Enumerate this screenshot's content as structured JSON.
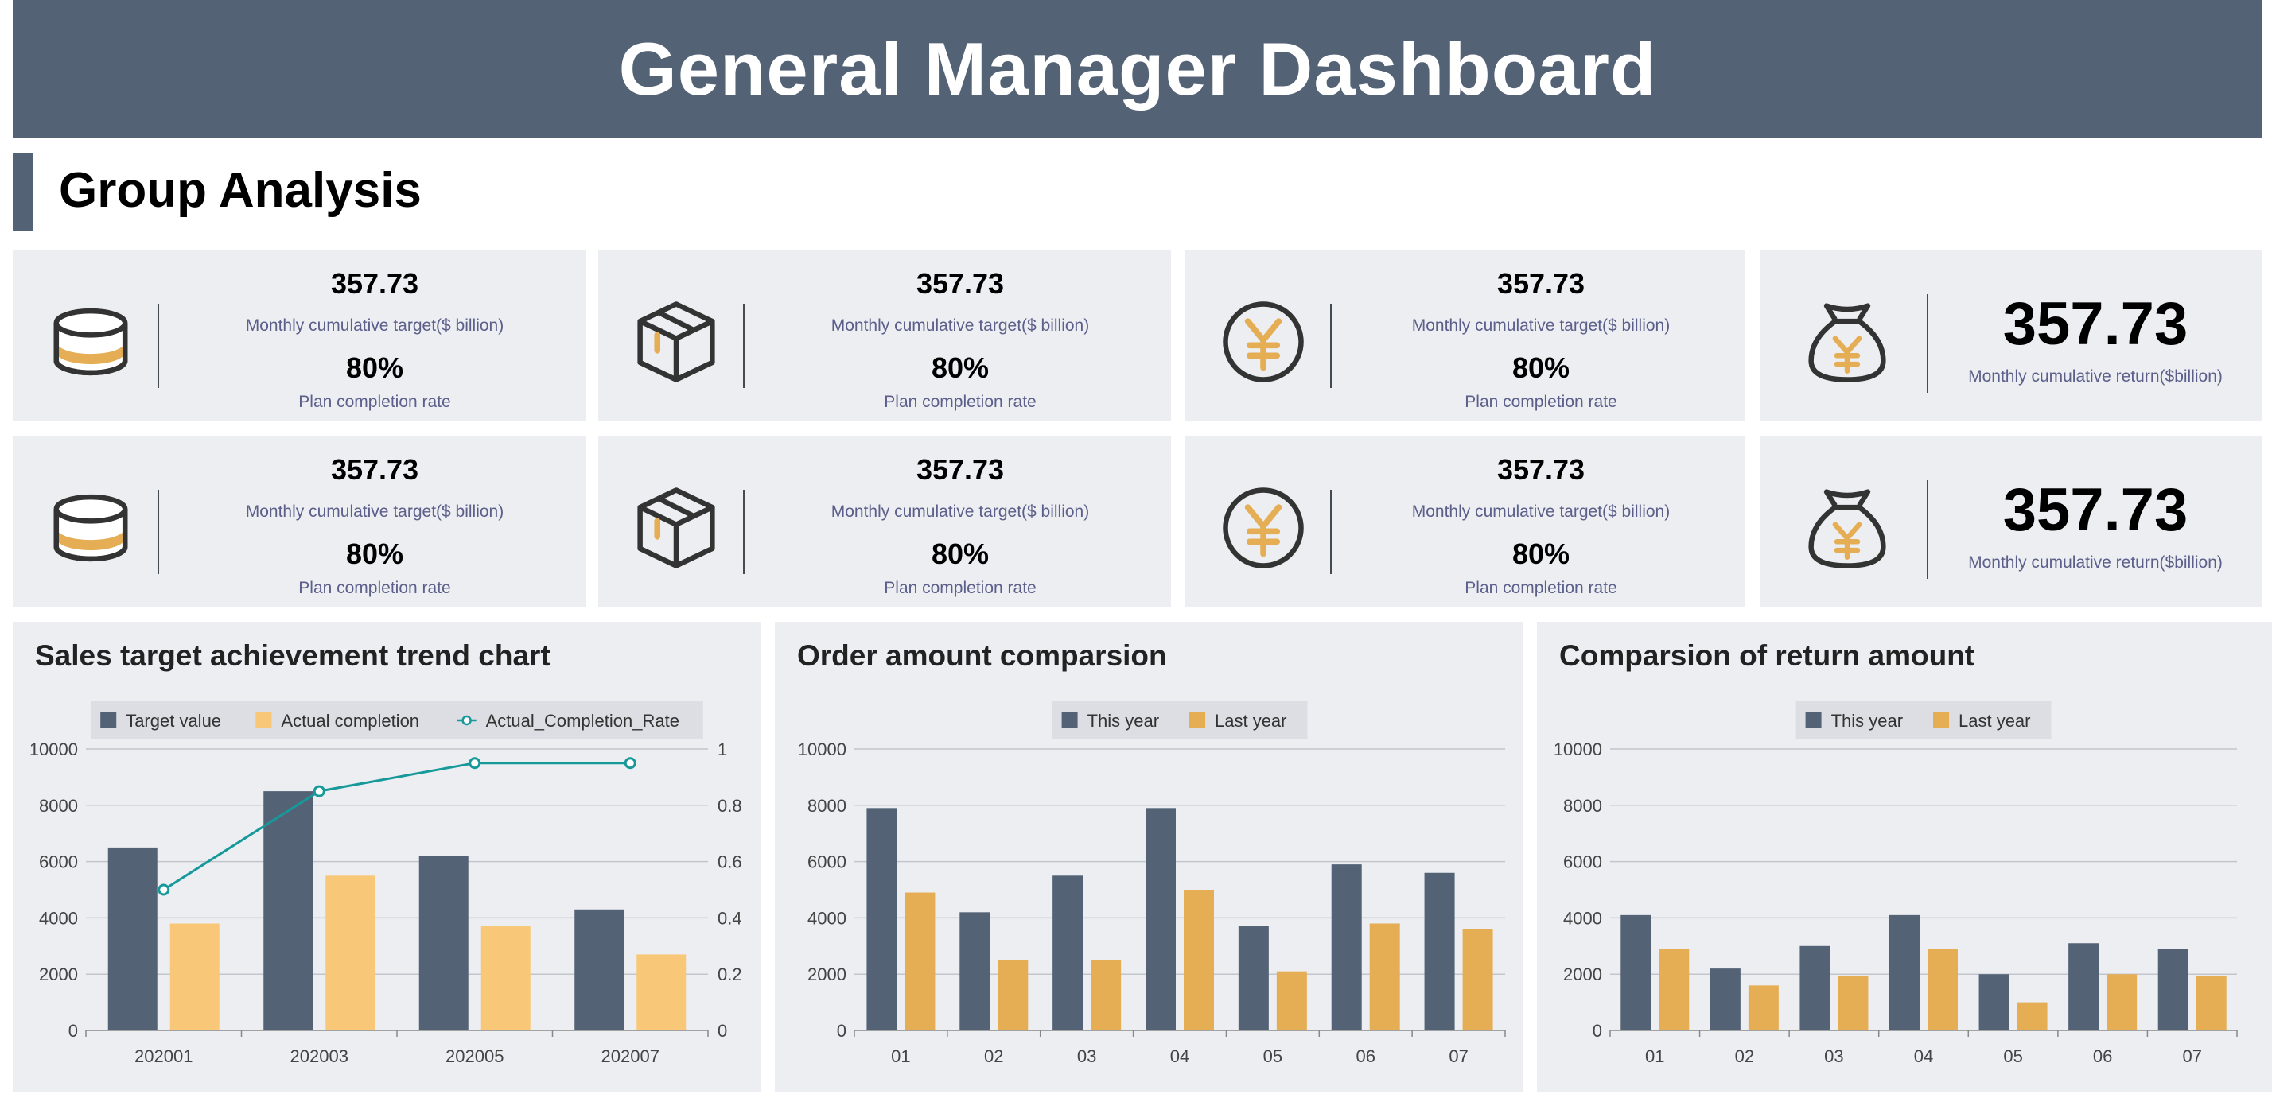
{
  "header": {
    "title": "General Manager Dashboard"
  },
  "section": {
    "title": "Group Analysis"
  },
  "colors": {
    "dark": "#536275",
    "light_gold": "#f8c878",
    "gold": "#e5ae55",
    "teal": "#17999a",
    "card_bg": "#eceef2"
  },
  "kpi_cards": [
    {
      "icon": "database-icon",
      "value": "357.73",
      "label": "Monthly cumulative target($ billion)",
      "rate": "80%",
      "rate_label": "Plan completion rate"
    },
    {
      "icon": "box-icon",
      "value": "357.73",
      "label": "Monthly cumulative target($ billion)",
      "rate": "80%",
      "rate_label": "Plan completion rate"
    },
    {
      "icon": "yen-coin-icon",
      "value": "357.73",
      "label": "Monthly cumulative target($ billion)",
      "rate": "80%",
      "rate_label": "Plan completion rate"
    },
    {
      "icon": "money-bag-icon",
      "value": "357.73",
      "label": "Monthly cumulative return($billion)"
    },
    {
      "icon": "database-icon",
      "value": "357.73",
      "label": "Monthly cumulative target($ billion)",
      "rate": "80%",
      "rate_label": "Plan completion rate"
    },
    {
      "icon": "box-icon",
      "value": "357.73",
      "label": "Monthly cumulative target($ billion)",
      "rate": "80%",
      "rate_label": "Plan completion rate"
    },
    {
      "icon": "yen-coin-icon",
      "value": "357.73",
      "label": "Monthly cumulative target($ billion)",
      "rate": "80%",
      "rate_label": "Plan completion rate"
    },
    {
      "icon": "money-bag-icon",
      "value": "357.73",
      "label": "Monthly cumulative return($billion)"
    }
  ],
  "chart_data": [
    {
      "type": "bar",
      "title": "Sales target achievement trend chart",
      "categories": [
        "202001",
        "202003",
        "202005",
        "202007"
      ],
      "series": [
        {
          "name": "Target value",
          "values": [
            6500,
            8500,
            6200,
            4300
          ],
          "color": "#536275"
        },
        {
          "name": "Actual completion",
          "values": [
            3800,
            5500,
            3700,
            2700
          ],
          "color": "#f8c878"
        }
      ],
      "line_series": {
        "name": "Actual_Completion_Rate",
        "values": [
          0.5,
          0.85,
          0.95,
          0.95
        ],
        "color": "#17999a",
        "axis": "right"
      },
      "ylim": [
        0,
        10000
      ],
      "yticks": [
        0,
        2000,
        4000,
        6000,
        8000,
        10000
      ],
      "y2lim": [
        0,
        1
      ],
      "y2ticks": [
        "0",
        "0.2",
        "0.4",
        "0.6",
        "0.8",
        "1"
      ],
      "legend": "top-center"
    },
    {
      "type": "bar",
      "title": "Order amount comparsion",
      "categories": [
        "01",
        "02",
        "03",
        "04",
        "05",
        "06",
        "07"
      ],
      "series": [
        {
          "name": "This year",
          "values": [
            7900,
            4200,
            5500,
            7900,
            3700,
            5900,
            5600
          ],
          "color": "#536275"
        },
        {
          "name": "Last year",
          "values": [
            4900,
            2500,
            2500,
            5000,
            2100,
            3800,
            3600
          ],
          "color": "#e5ae55"
        }
      ],
      "ylim": [
        0,
        10000
      ],
      "yticks": [
        0,
        2000,
        4000,
        6000,
        8000,
        10000
      ],
      "legend": "top-center"
    },
    {
      "type": "bar",
      "title": "Comparsion of return amount",
      "categories": [
        "01",
        "02",
        "03",
        "04",
        "05",
        "06",
        "07"
      ],
      "series": [
        {
          "name": "This year",
          "values": [
            4100,
            2200,
            3000,
            4100,
            2000,
            3100,
            2900
          ],
          "color": "#536275"
        },
        {
          "name": "Last year",
          "values": [
            2900,
            1600,
            1950,
            2900,
            1000,
            2000,
            1950
          ],
          "color": "#e5ae55"
        }
      ],
      "ylim": [
        0,
        10000
      ],
      "yticks": [
        0,
        2000,
        4000,
        6000,
        8000,
        10000
      ],
      "legend": "top-center"
    }
  ]
}
